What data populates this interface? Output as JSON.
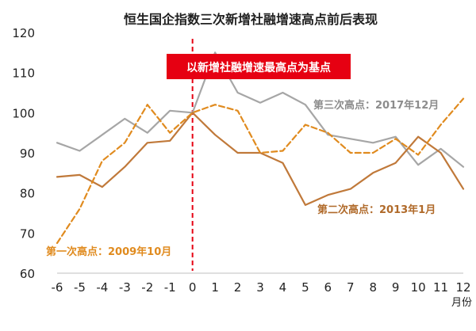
{
  "chart_data": {
    "type": "line",
    "title": "恒生国企指数三次新增社融增速高点前后表现",
    "x_unit_label": "月份",
    "x": [
      -6,
      -5,
      -4,
      -3,
      -2,
      -1,
      0,
      1,
      2,
      3,
      4,
      5,
      6,
      7,
      8,
      9,
      10,
      11,
      12
    ],
    "ylim": [
      60,
      120
    ],
    "yticks": [
      60,
      70,
      80,
      90,
      100,
      110,
      120
    ],
    "reference_x": 0,
    "reference_label": "以新增社融增速最高点为基点",
    "series": [
      {
        "name": "第一次高点：2009年10月",
        "color": "#e08b1f",
        "dashed": true,
        "values": [
          67.5,
          76,
          88,
          92.5,
          102,
          95,
          100,
          102,
          100.5,
          90,
          90.5,
          97,
          95,
          90,
          90,
          93.5,
          89.5,
          97,
          103.5
        ]
      },
      {
        "name": "第二次高点：2013年1月",
        "color": "#c0793a",
        "dashed": false,
        "values": [
          84,
          84.5,
          81.5,
          86.5,
          92.5,
          93,
          100,
          94.5,
          90,
          90,
          87.5,
          77,
          79.5,
          81,
          85,
          87.5,
          94,
          90,
          81
        ]
      },
      {
        "name": "第三次高点：2017年12月",
        "color": "#a6a6a6",
        "dashed": false,
        "values": [
          92.5,
          90.5,
          94.5,
          98.5,
          95,
          100.5,
          100,
          115,
          105,
          102.5,
          105,
          102,
          94.5,
          93.5,
          92.5,
          94,
          87,
          91,
          86.5
        ]
      }
    ]
  }
}
